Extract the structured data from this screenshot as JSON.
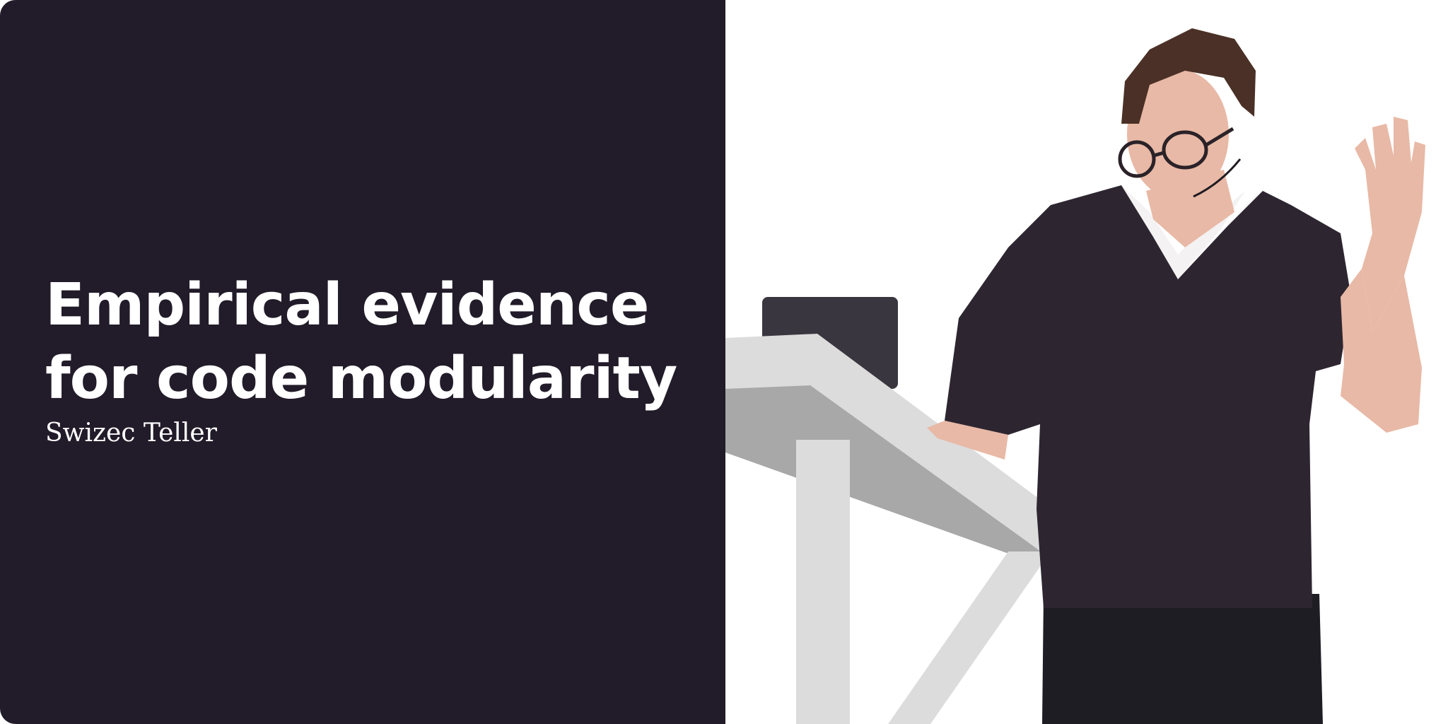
{
  "card": {
    "title_lines": [
      "Empirical evidence",
      "for code modularity"
    ],
    "author": "Swizec Teller"
  },
  "photo": {
    "subject": "speaker-photo",
    "icon": "speaker-at-podium-icon"
  },
  "colors": {
    "panel_background": "#221b29",
    "title_text": "#ffffff",
    "photo_background": "#ffffff",
    "shirt": "#2d2630",
    "skin": "#e8b9a6",
    "hair": "#4a3026",
    "podium": "#dcdcdc",
    "podium_shadow": "#a8a8a8",
    "tablet": "#3a3640",
    "jeans": "#1f1d24"
  }
}
